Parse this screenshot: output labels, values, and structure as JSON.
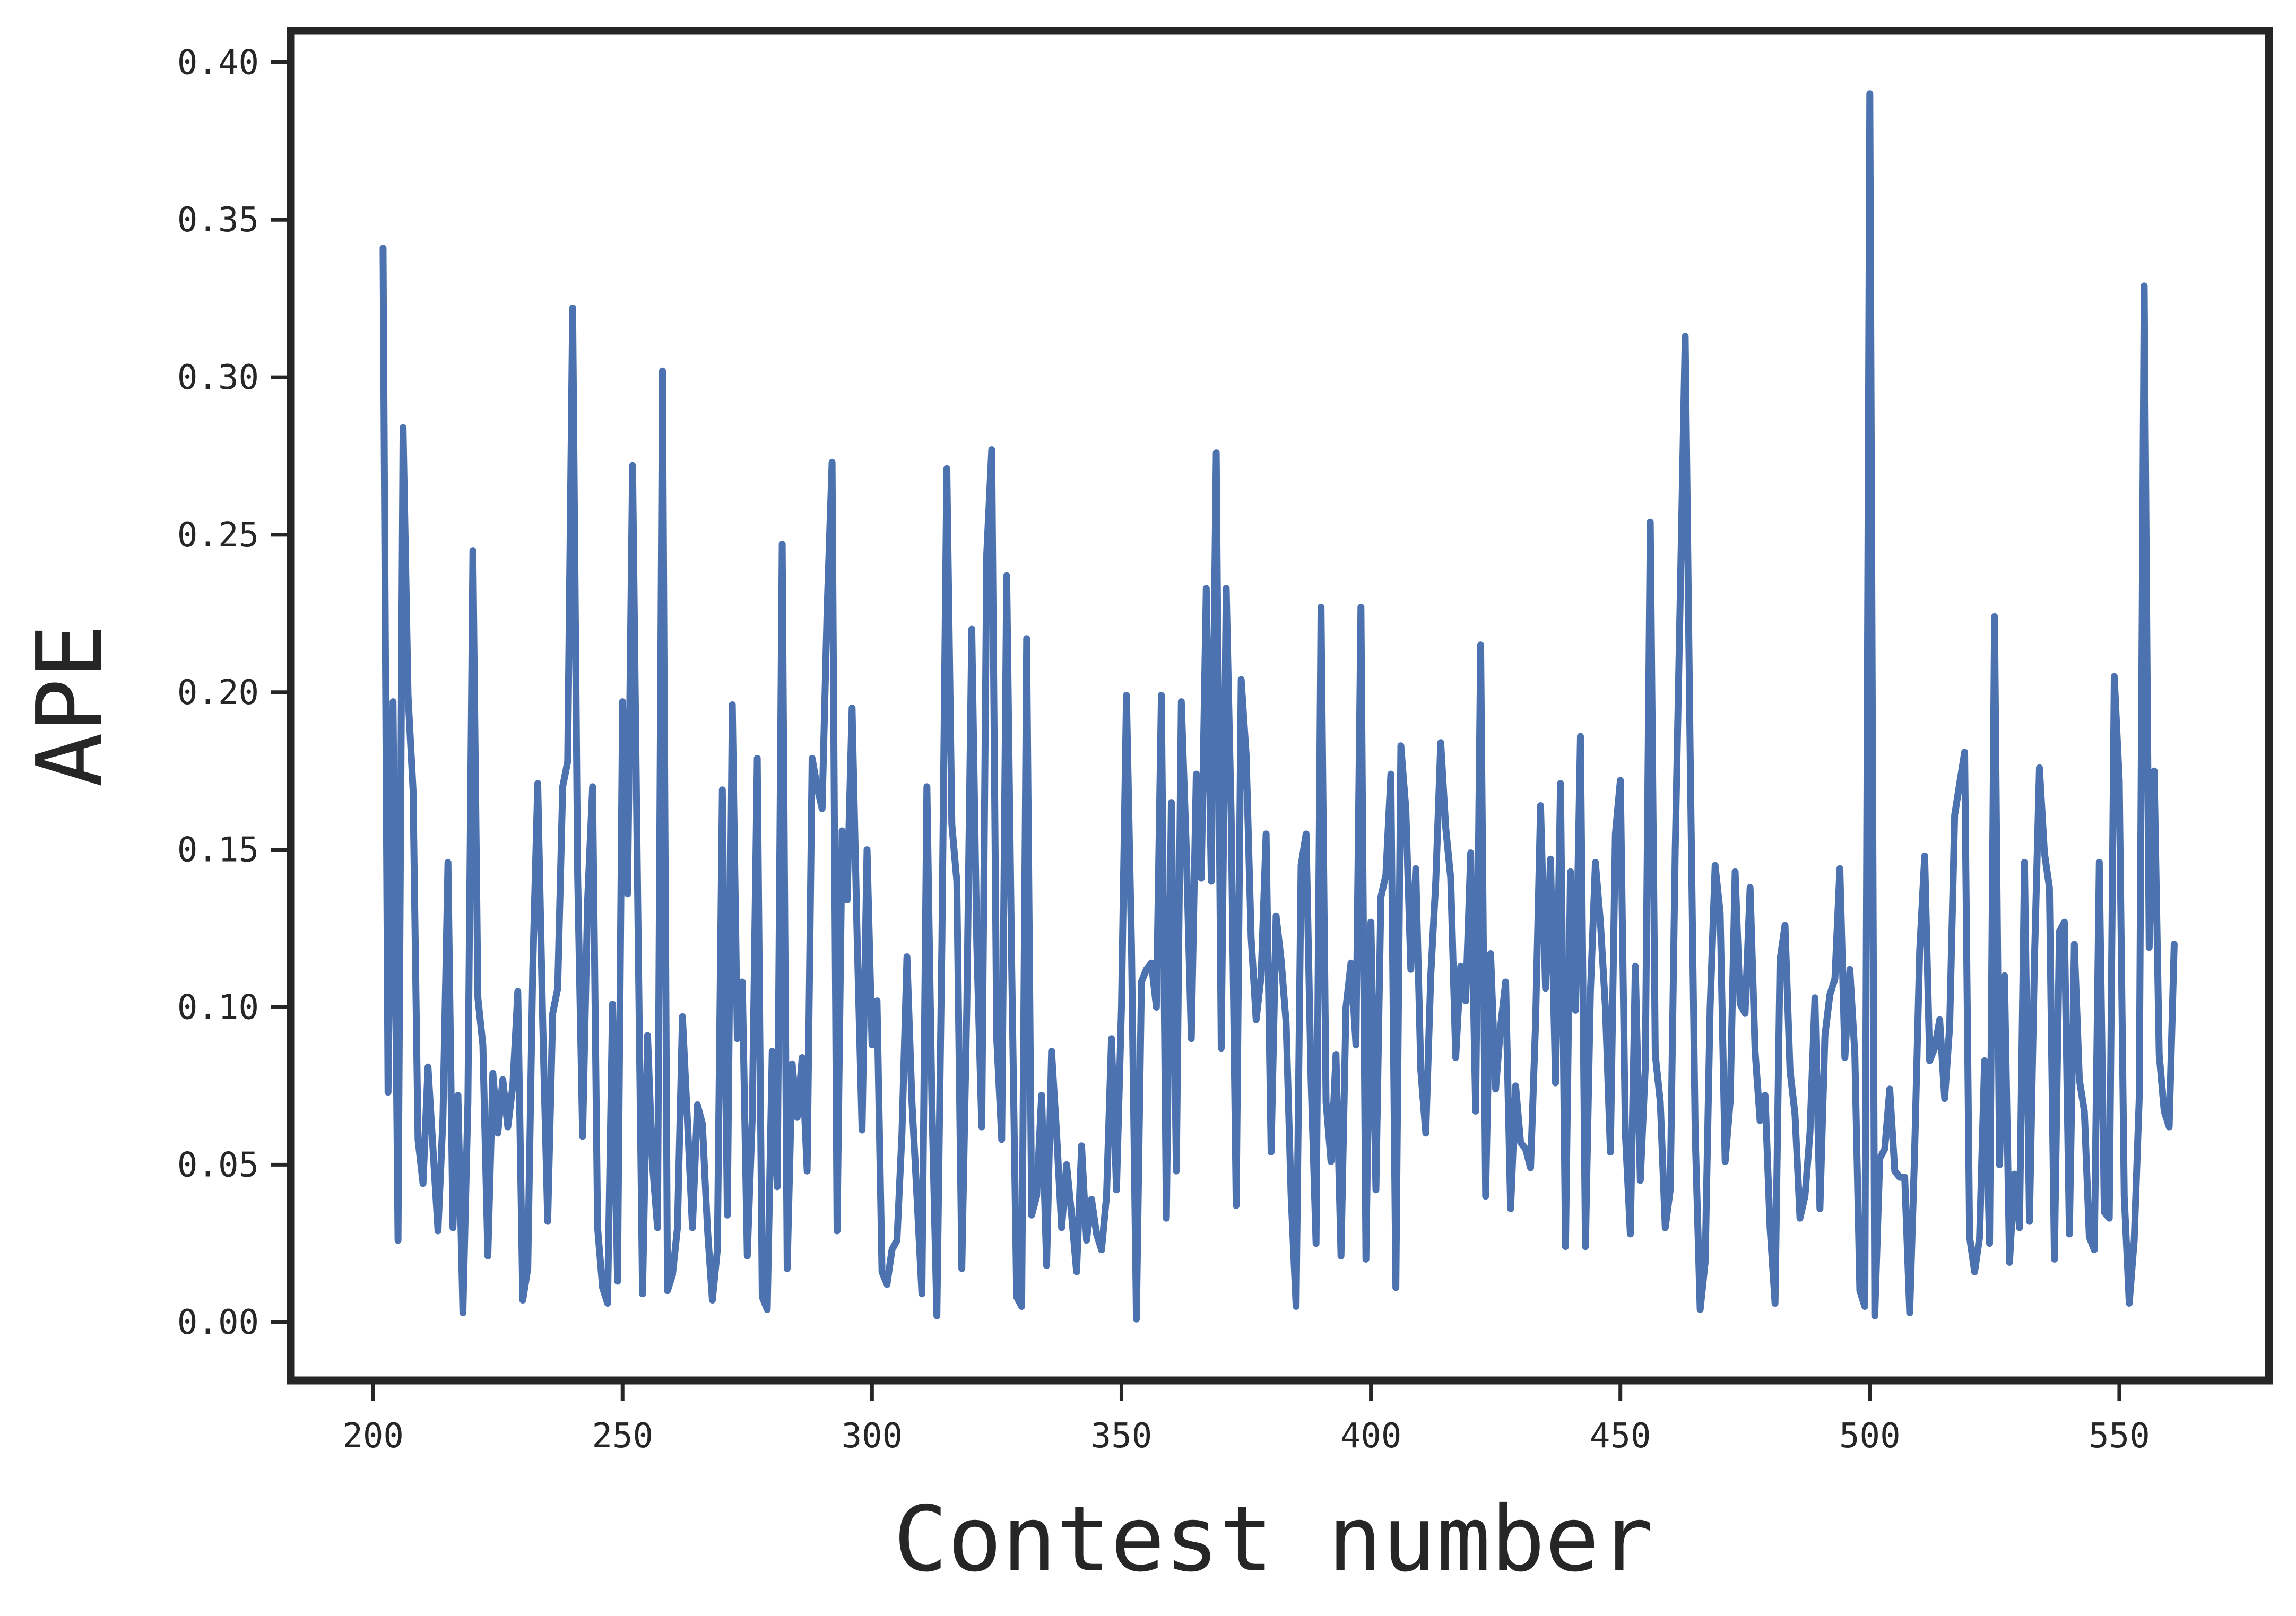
{
  "chart_data": {
    "type": "line",
    "title": "",
    "xlabel": "Contest number",
    "ylabel": "APE",
    "xlim": [
      183.5,
      580
    ],
    "ylim": [
      -0.0185,
      0.41
    ],
    "xticks": [
      200,
      250,
      300,
      350,
      400,
      450,
      500,
      550
    ],
    "xtick_labels": [
      "200",
      "250",
      "300",
      "350",
      "400",
      "450",
      "500",
      "550"
    ],
    "yticks": [
      0.0,
      0.05,
      0.1,
      0.15,
      0.2,
      0.25,
      0.3,
      0.35,
      0.4
    ],
    "ytick_labels": [
      "0.00",
      "0.05",
      "0.10",
      "0.15",
      "0.20",
      "0.25",
      "0.30",
      "0.35",
      "0.40"
    ],
    "grid": false,
    "line_color": "#4c72b0",
    "series": [
      {
        "x_start": 202,
        "x_step": 1,
        "values": [
          0.341,
          0.073,
          0.197,
          0.026,
          0.284,
          0.199,
          0.169,
          0.058,
          0.044,
          0.081,
          0.055,
          0.029,
          0.065,
          0.146,
          0.03,
          0.072,
          0.003,
          0.07,
          0.245,
          0.103,
          0.088,
          0.021,
          0.079,
          0.06,
          0.077,
          0.062,
          0.075,
          0.105,
          0.007,
          0.017,
          0.112,
          0.171,
          0.095,
          0.032,
          0.098,
          0.106,
          0.17,
          0.178,
          0.322,
          0.142,
          0.059,
          0.134,
          0.17,
          0.03,
          0.011,
          0.006,
          0.101,
          0.013,
          0.197,
          0.136,
          0.272,
          0.138,
          0.009,
          0.091,
          0.05,
          0.03,
          0.302,
          0.01,
          0.015,
          0.03,
          0.097,
          0.064,
          0.03,
          0.069,
          0.063,
          0.03,
          0.007,
          0.023,
          0.169,
          0.034,
          0.196,
          0.09,
          0.108,
          0.021,
          0.065,
          0.179,
          0.008,
          0.004,
          0.086,
          0.043,
          0.247,
          0.017,
          0.082,
          0.065,
          0.084,
          0.048,
          0.179,
          0.17,
          0.163,
          0.226,
          0.273,
          0.029,
          0.156,
          0.134,
          0.195,
          0.123,
          0.061,
          0.15,
          0.088,
          0.102,
          0.016,
          0.012,
          0.023,
          0.026,
          0.06,
          0.116,
          0.07,
          0.04,
          0.009,
          0.17,
          0.07,
          0.002,
          0.12,
          0.271,
          0.158,
          0.14,
          0.017,
          0.1,
          0.22,
          0.12,
          0.062,
          0.244,
          0.277,
          0.09,
          0.058,
          0.237,
          0.113,
          0.008,
          0.005,
          0.217,
          0.034,
          0.04,
          0.072,
          0.018,
          0.086,
          0.06,
          0.03,
          0.05,
          0.034,
          0.016,
          0.056,
          0.026,
          0.039,
          0.028,
          0.023,
          0.04,
          0.09,
          0.042,
          0.1,
          0.199,
          0.12,
          0.001,
          0.108,
          0.112,
          0.114,
          0.1,
          0.199,
          0.033,
          0.165,
          0.048,
          0.197,
          0.15,
          0.09,
          0.174,
          0.141,
          0.233,
          0.14,
          0.276,
          0.087,
          0.233,
          0.16,
          0.037,
          0.204,
          0.18,
          0.122,
          0.096,
          0.11,
          0.155,
          0.054,
          0.129,
          0.115,
          0.095,
          0.04,
          0.005,
          0.145,
          0.155,
          0.077,
          0.025,
          0.227,
          0.07,
          0.051,
          0.085,
          0.021,
          0.1,
          0.114,
          0.088,
          0.227,
          0.02,
          0.127,
          0.042,
          0.135,
          0.142,
          0.174,
          0.011,
          0.183,
          0.163,
          0.112,
          0.144,
          0.08,
          0.06,
          0.11,
          0.14,
          0.184,
          0.157,
          0.141,
          0.084,
          0.113,
          0.102,
          0.149,
          0.067,
          0.215,
          0.04,
          0.117,
          0.074,
          0.094,
          0.108,
          0.036,
          0.075,
          0.057,
          0.055,
          0.049,
          0.095,
          0.164,
          0.106,
          0.147,
          0.076,
          0.171,
          0.024,
          0.143,
          0.099,
          0.186,
          0.024,
          0.105,
          0.146,
          0.127,
          0.1,
          0.054,
          0.155,
          0.172,
          0.06,
          0.028,
          0.113,
          0.045,
          0.081,
          0.254,
          0.085,
          0.07,
          0.03,
          0.042,
          0.15,
          0.23,
          0.313,
          0.18,
          0.06,
          0.004,
          0.019,
          0.1,
          0.145,
          0.13,
          0.051,
          0.07,
          0.143,
          0.101,
          0.098,
          0.138,
          0.086,
          0.064,
          0.072,
          0.03,
          0.006,
          0.115,
          0.126,
          0.08,
          0.066,
          0.033,
          0.04,
          0.06,
          0.103,
          0.036,
          0.091,
          0.104,
          0.109,
          0.144,
          0.084,
          0.112,
          0.085,
          0.01,
          0.005,
          0.39,
          0.002,
          0.052,
          0.055,
          0.074,
          0.048,
          0.046,
          0.046,
          0.003,
          0.055,
          0.118,
          0.148,
          0.083,
          0.087,
          0.096,
          0.071,
          0.094,
          0.161,
          0.171,
          0.181,
          0.027,
          0.016,
          0.027,
          0.083,
          0.025,
          0.224,
          0.05,
          0.11,
          0.019,
          0.047,
          0.03,
          0.146,
          0.032,
          0.115,
          0.176,
          0.149,
          0.138,
          0.02,
          0.124,
          0.127,
          0.028,
          0.12,
          0.077,
          0.067,
          0.027,
          0.023,
          0.146,
          0.035,
          0.033,
          0.205,
          0.172,
          0.04,
          0.006,
          0.026,
          0.071,
          0.329,
          0.119,
          0.175,
          0.085,
          0.067,
          0.062,
          0.12
        ]
      }
    ]
  }
}
